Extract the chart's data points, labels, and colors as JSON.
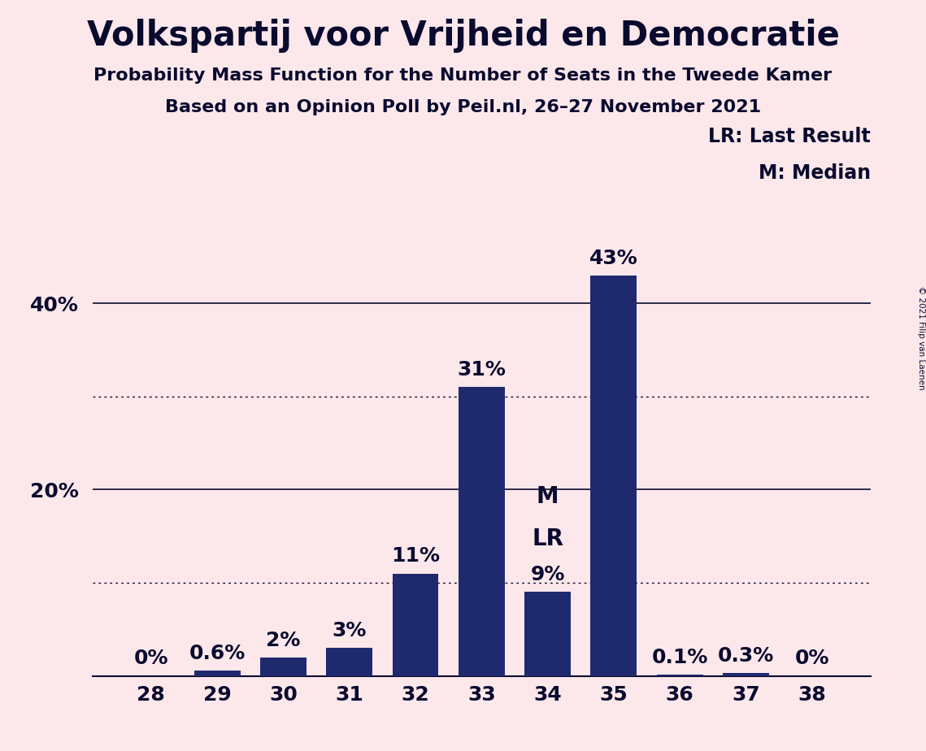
{
  "title": "Volkspartij voor Vrijheid en Democratie",
  "subtitle1": "Probability Mass Function for the Number of Seats in the Tweede Kamer",
  "subtitle2": "Based on an Opinion Poll by Peil.nl, 26–27 November 2021",
  "copyright": "© 2021 Filip van Laenen",
  "categories": [
    28,
    29,
    30,
    31,
    32,
    33,
    34,
    35,
    36,
    37,
    38
  ],
  "values": [
    0.0,
    0.6,
    2.0,
    3.0,
    11.0,
    31.0,
    9.0,
    43.0,
    0.1,
    0.3,
    0.0
  ],
  "labels": [
    "0%",
    "0.6%",
    "2%",
    "3%",
    "11%",
    "31%",
    "9%",
    "43%",
    "0.1%",
    "0.3%",
    "0%"
  ],
  "bar_color": "#1f2a6e",
  "bg_color": "#fce8eb",
  "text_color": "#0a0a2e",
  "median_bar_idx": 6,
  "lr_bar_idx": 6,
  "legend_lr": "LR: Last Result",
  "legend_m": "M: Median",
  "ylim_max": 50,
  "grid_solid": [
    20,
    40
  ],
  "grid_dotted": [
    10,
    30
  ],
  "title_fontsize": 30,
  "subtitle_fontsize": 16,
  "bar_label_fontsize": 18,
  "axis_tick_fontsize": 18,
  "legend_fontsize": 17,
  "mlr_fontsize": 20
}
